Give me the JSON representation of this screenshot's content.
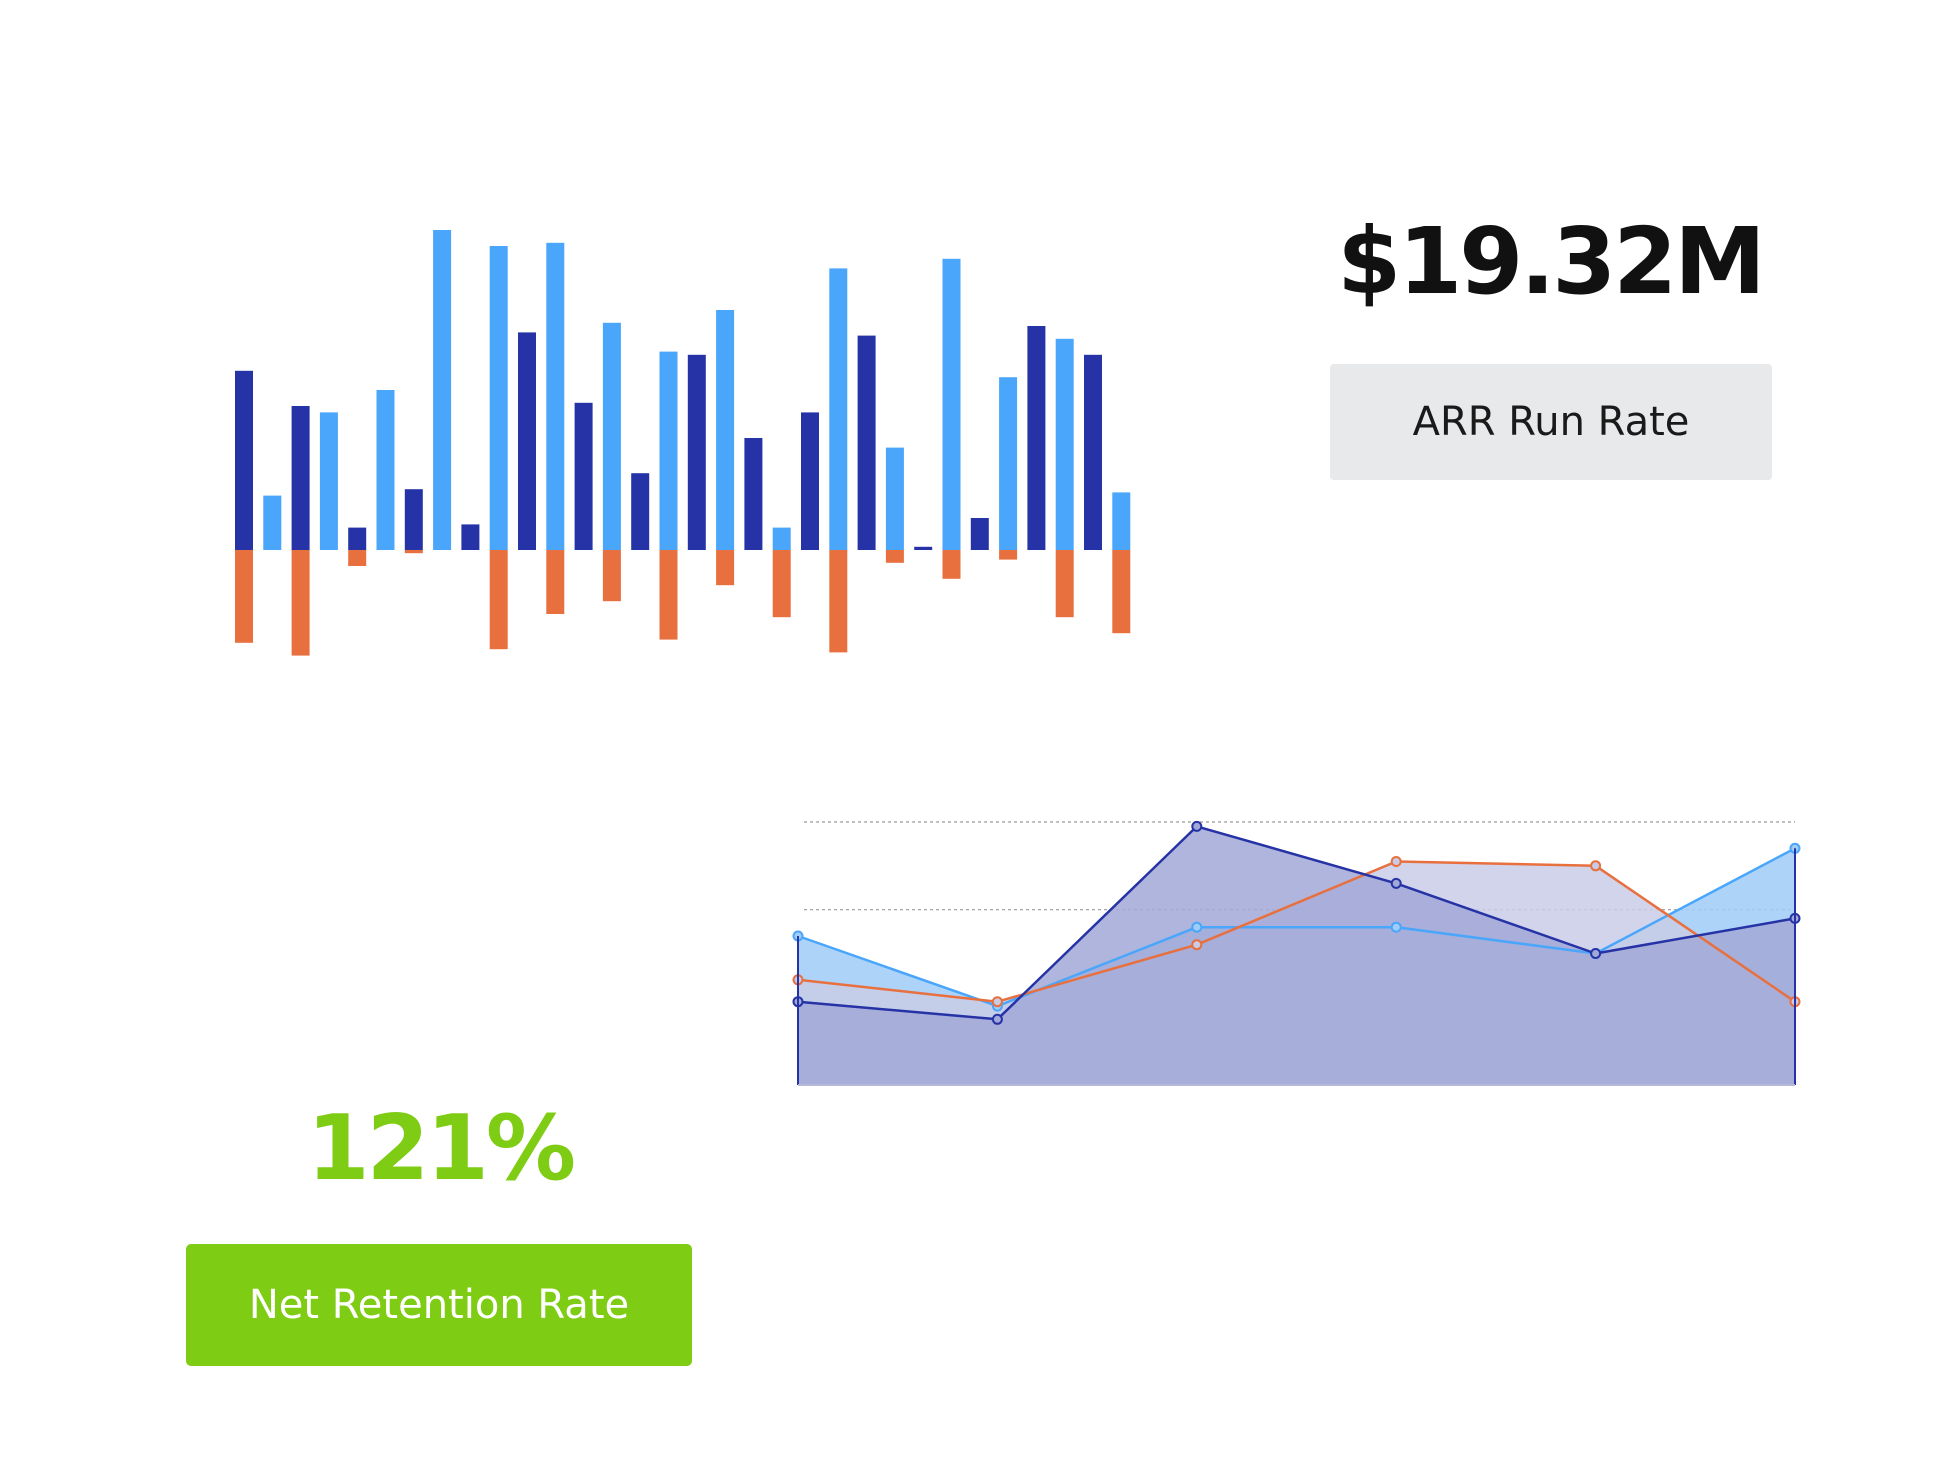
{
  "metrics": {
    "arr": {
      "value": "$19.32M",
      "label": "ARR Run Rate",
      "value_color": "#111111",
      "label_bg": "#e8e9eb"
    },
    "nrr": {
      "value": "121%",
      "label": "Net Retention Rate",
      "value_color": "#7fcc14",
      "label_bg": "#7fcc14"
    }
  },
  "chart_data": [
    {
      "type": "bar",
      "title": "",
      "xlabel": "",
      "ylabel": "",
      "ylim": [
        -33,
        100
      ],
      "grid": false,
      "legend": "none",
      "colors": {
        "dark": "#2633a6",
        "light": "#4aa6fb",
        "negative": "#e8703f"
      },
      "bars": [
        {
          "color": "dark",
          "values": [
            56,
            -29
          ]
        },
        {
          "color": "light",
          "values": [
            17
          ]
        },
        {
          "color": "dark",
          "values": [
            45,
            -33
          ]
        },
        {
          "color": "light",
          "values": [
            43
          ]
        },
        {
          "color": "dark",
          "values": [
            7,
            -5
          ]
        },
        {
          "color": "light",
          "values": [
            50
          ]
        },
        {
          "color": "dark",
          "values": [
            19,
            -1
          ]
        },
        {
          "color": "light",
          "values": [
            100
          ]
        },
        {
          "color": "dark",
          "values": [
            8
          ]
        },
        {
          "color": "light",
          "values": [
            95,
            -31
          ]
        },
        {
          "color": "dark",
          "values": [
            68
          ]
        },
        {
          "color": "light",
          "values": [
            96,
            -20
          ]
        },
        {
          "color": "dark",
          "values": [
            46
          ]
        },
        {
          "color": "light",
          "values": [
            71,
            -16
          ]
        },
        {
          "color": "dark",
          "values": [
            24
          ]
        },
        {
          "color": "light",
          "values": [
            62,
            -28
          ]
        },
        {
          "color": "dark",
          "values": [
            61
          ]
        },
        {
          "color": "light",
          "values": [
            75,
            -11
          ]
        },
        {
          "color": "dark",
          "values": [
            35
          ]
        },
        {
          "color": "light",
          "values": [
            7,
            -21
          ]
        },
        {
          "color": "dark",
          "values": [
            43
          ]
        },
        {
          "color": "light",
          "values": [
            88,
            -32
          ]
        },
        {
          "color": "dark",
          "values": [
            67
          ]
        },
        {
          "color": "light",
          "values": [
            32,
            -4
          ]
        },
        {
          "color": "dark",
          "values": [
            1
          ]
        },
        {
          "color": "light",
          "values": [
            91,
            -9
          ]
        },
        {
          "color": "dark",
          "values": [
            10
          ]
        },
        {
          "color": "light",
          "values": [
            54,
            -3
          ]
        },
        {
          "color": "dark",
          "values": [
            70
          ]
        },
        {
          "color": "light",
          "values": [
            66,
            -21
          ]
        },
        {
          "color": "dark",
          "values": [
            61
          ]
        },
        {
          "color": "light",
          "values": [
            18,
            -26
          ]
        }
      ]
    },
    {
      "type": "area",
      "title": "",
      "xlabel": "",
      "ylabel": "",
      "x": [
        1,
        2,
        3,
        4,
        5,
        6
      ],
      "ylim": [
        0,
        30
      ],
      "grid_lines": [
        20,
        30
      ],
      "grid": true,
      "legend": "none",
      "series": [
        {
          "color": "#4aa6fb",
          "fill": "#9fcdf7",
          "values": [
            17,
            9,
            18,
            18,
            15,
            27
          ]
        },
        {
          "color": "#e8703f",
          "fill": "#c9cce6",
          "values": [
            12,
            9.5,
            16,
            25.5,
            25,
            9.5
          ]
        },
        {
          "color": "#2633a6",
          "fill": "#a2a8d7",
          "values": [
            9.5,
            7.5,
            29.5,
            23,
            15,
            19
          ]
        }
      ]
    }
  ]
}
